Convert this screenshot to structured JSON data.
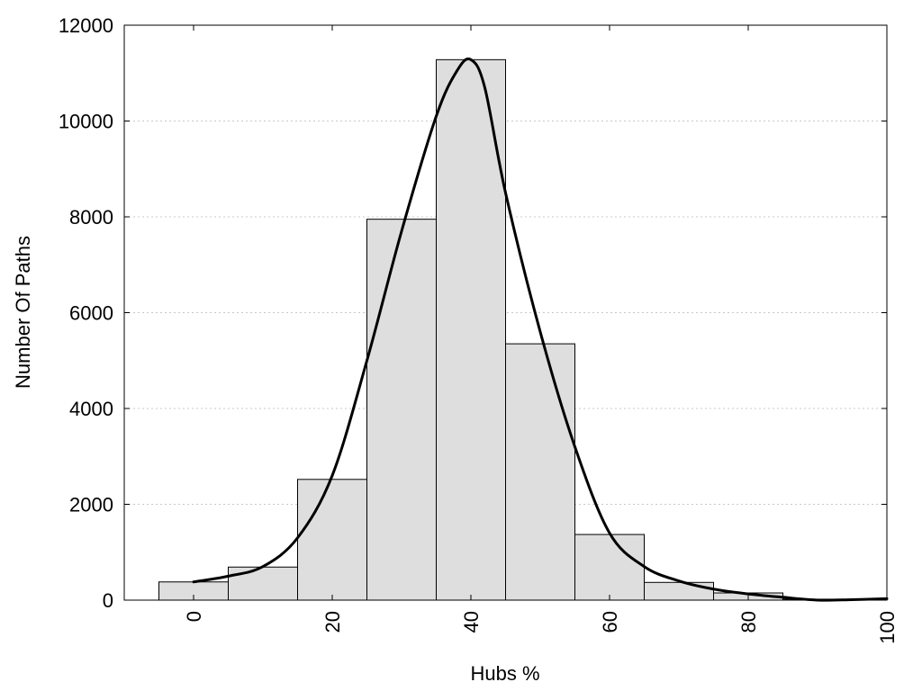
{
  "chart_data": {
    "type": "bar",
    "xlabel": "Hubs %",
    "ylabel": "Number Of Paths",
    "xlim": [
      -10,
      100
    ],
    "ylim": [
      0,
      12000
    ],
    "x_ticks": [
      0,
      20,
      40,
      60,
      80,
      100
    ],
    "y_ticks": [
      0,
      2000,
      4000,
      6000,
      8000,
      10000,
      12000
    ],
    "grid": "horizontal-dotted",
    "bin_width": 10,
    "bins": [
      0,
      10,
      20,
      30,
      40,
      50,
      60,
      70,
      80,
      90
    ],
    "values": [
      380,
      690,
      2520,
      7950,
      11280,
      5350,
      1370,
      370,
      150,
      20
    ],
    "bar_color": "#dedede",
    "curve": {
      "x": [
        0,
        5,
        10,
        15,
        20,
        25,
        30,
        35,
        38,
        40,
        42,
        45,
        50,
        55,
        60,
        65,
        70,
        75,
        80,
        85,
        90,
        95,
        100
      ],
      "y": [
        380,
        500,
        700,
        1300,
        2600,
        5000,
        7700,
        10100,
        11050,
        11280,
        10700,
        8500,
        5600,
        3200,
        1400,
        700,
        400,
        230,
        130,
        60,
        0,
        10,
        30
      ],
      "color": "#000000"
    }
  }
}
